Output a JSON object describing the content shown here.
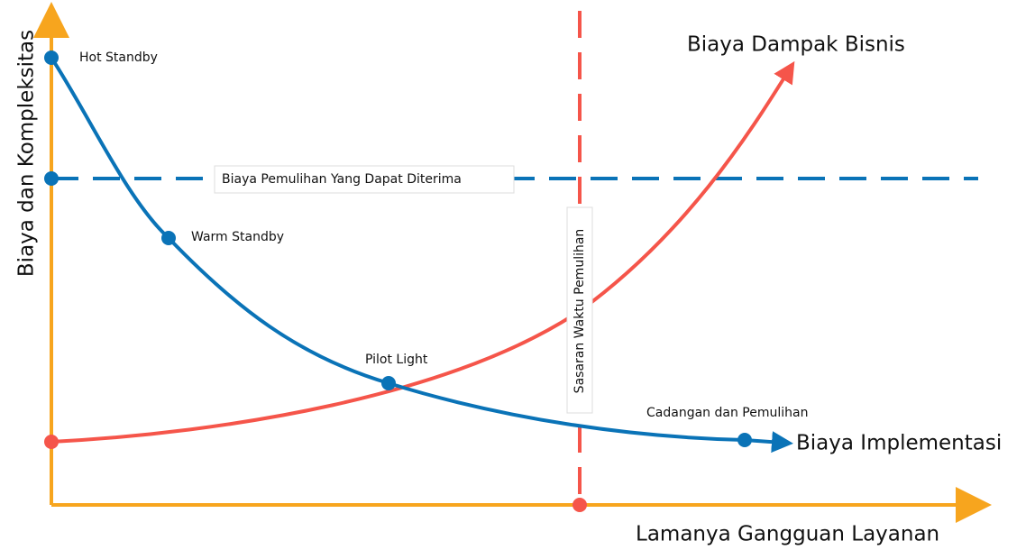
{
  "axes": {
    "y_label": "Biaya dan Kompleksitas",
    "x_label": "Lamanya Gangguan Layanan"
  },
  "curves": {
    "impact": "Biaya Dampak Bisnis",
    "implementation": "Biaya Implementasi"
  },
  "lines": {
    "acceptable_cost": "Biaya Pemulihan Yang Dapat Diterima",
    "recovery_time": "Sasaran Waktu Pemulihan"
  },
  "points": [
    "Hot Standby",
    "Warm Standby",
    "Pilot Light",
    "Cadangan dan Pemulihan"
  ]
}
